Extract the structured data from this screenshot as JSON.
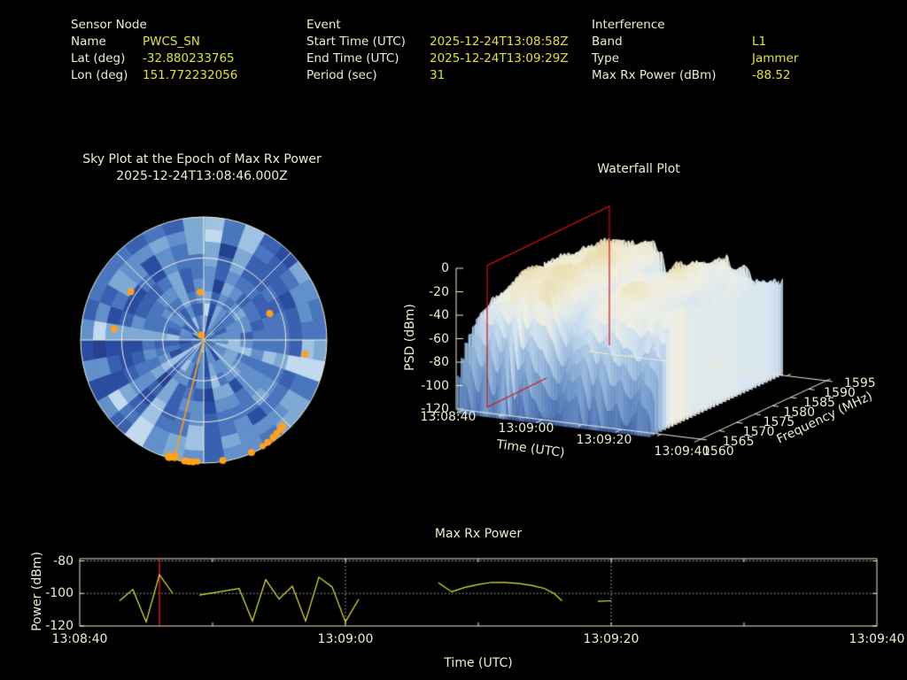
{
  "colors": {
    "background": "#000000",
    "text": "#f0ecd2",
    "value_text": "#e2e232",
    "series": "#e8e83c",
    "grid_dotted": "#b8b8b8",
    "frame": "#f0ecd2",
    "marker_red": "#dd1111",
    "satellite_orange": "#ffa01e"
  },
  "header": {
    "sensor": {
      "title": "Sensor Node",
      "rows": [
        {
          "label": "Name",
          "value": "PWCS_SN"
        },
        {
          "label": "Lat (deg)",
          "value": "-32.880233765"
        },
        {
          "label": "Lon (deg)",
          "value": "151.772232056"
        }
      ]
    },
    "event": {
      "title": "Event",
      "rows": [
        {
          "label": "Start Time (UTC)",
          "value": "2025-12-24T13:08:58Z"
        },
        {
          "label": "End Time (UTC)",
          "value": "2025-12-24T13:09:29Z"
        },
        {
          "label": "Period (sec)",
          "value": "31"
        }
      ]
    },
    "interference": {
      "title": "Interference",
      "rows": [
        {
          "label": "Band",
          "value": "L1"
        },
        {
          "label": "Type",
          "value": "Jammer"
        },
        {
          "label": "Max Rx Power (dBm)",
          "value": "-88.52"
        }
      ]
    }
  },
  "chart_data": [
    {
      "type": "heatmap",
      "id": "sky_plot",
      "title": "Sky Plot at the Epoch of Max Rx Power",
      "subtitle": "2025-12-24T13:08:46.000Z",
      "projection": "polar-azimuth-elevation",
      "elevation_rings_deg": [
        0,
        30,
        60
      ],
      "azimuth_spoke_step_deg": 45,
      "palette_blues": [
        "#24408e",
        "#2b4da1",
        "#3a60b0",
        "#4a76be",
        "#6190ca",
        "#7fa9d5",
        "#9fc2e2",
        "#c2daee"
      ],
      "seed": 12,
      "note": "azimuth/elevation bins shaded by received power (values not labeled on screen)",
      "jammer_bearing_line": {
        "az_deg": 194,
        "from_el_deg": 90,
        "to_el_deg": 2
      },
      "satellites_az_el": [
        {
          "az": 303.5,
          "el": 26,
          "size": 4
        },
        {
          "az": 356,
          "el": 55,
          "size": 4
        },
        {
          "az": 68,
          "el": 38,
          "size": 4
        },
        {
          "az": 277,
          "el": 24,
          "size": 4
        },
        {
          "az": 333,
          "el": 86,
          "size": 4
        },
        {
          "az": 98,
          "el": 15,
          "size": 4
        },
        {
          "az": 194,
          "el": 2,
          "size": 5
        },
        {
          "az": 196.5,
          "el": 1,
          "size": 5
        },
        {
          "az": 189,
          "el": 0.5,
          "size": 4
        },
        {
          "az": 187,
          "el": 0.5,
          "size": 4
        },
        {
          "az": 185,
          "el": 0.7,
          "size": 4
        },
        {
          "az": 183,
          "el": 1,
          "size": 3.5
        },
        {
          "az": 171,
          "el": 0.8,
          "size": 4
        },
        {
          "az": 157,
          "el": 0.6,
          "size": 4
        },
        {
          "az": 151,
          "el": 1.2,
          "size": 3.5
        },
        {
          "az": 148,
          "el": 1.8,
          "size": 4
        },
        {
          "az": 144.5,
          "el": 2.5,
          "size": 4
        },
        {
          "az": 142,
          "el": 3.2,
          "size": 4
        },
        {
          "az": 139.5,
          "el": 4,
          "size": 4
        },
        {
          "az": 137.5,
          "el": 4.6,
          "size": 4
        }
      ]
    },
    {
      "type": "surface",
      "id": "waterfall",
      "title": "Waterfall Plot",
      "xlabel": "Time (UTC)",
      "ylabel": "Frequency (MHz)",
      "zlabel": "PSD (dBm)",
      "x_ticks": [
        "13:08:40",
        "13:09:00",
        "13:09:20",
        "13:09:40"
      ],
      "y_ticks": [
        1560,
        1565,
        1570,
        1575,
        1580,
        1585,
        1590,
        1595
      ],
      "z_ticks": [
        0,
        -20,
        -40,
        -60,
        -80,
        -100,
        -120
      ],
      "zlim": [
        -120,
        0
      ],
      "time_range_sec": [
        0,
        60
      ],
      "surface_time_extent_sec": [
        0,
        49
      ],
      "freq_range_mhz": [
        1560,
        1595
      ],
      "epoch_marker_time": "2025-12-24T13:08:46.000Z",
      "epoch_marker_time_sec": 6,
      "marker_color": "#dd1111",
      "seed": 7,
      "surface_description": "GNSS L1-band PSD vs time: broad plateau near -25 dBm with cream ridge tops near -10 dBm, deep jagged notches to -120 dBm along the low-frequency edge; red plane marks epoch of max Rx power"
    },
    {
      "type": "line",
      "id": "max_rx_power",
      "title": "Max Rx Power",
      "xlabel": "Time (UTC)",
      "ylabel": "Power (dBm)",
      "x_ticks": [
        "13:08:40",
        "13:09:00",
        "13:09:20",
        "13:09:40"
      ],
      "x_tick_sec": [
        0,
        20,
        40,
        60
      ],
      "y_ticks": [
        -80,
        -100,
        -120
      ],
      "ylim": [
        -120,
        -80
      ],
      "x_range_sec": [
        0,
        60
      ],
      "marker_time_sec": 6,
      "marker_color": "#dd1111",
      "series_t_dbm": [
        [
          3,
          -104.5
        ],
        [
          4,
          -97.5
        ],
        [
          5,
          -117.5
        ],
        [
          6,
          -88.52
        ],
        [
          7,
          -100
        ],
        null,
        [
          9,
          -101
        ],
        [
          12,
          -97
        ],
        [
          13,
          -117
        ],
        [
          14,
          -91.5
        ],
        [
          15,
          -103.5
        ],
        [
          16,
          -95.5
        ],
        [
          17,
          -117
        ],
        [
          18,
          -90
        ],
        [
          19,
          -96
        ],
        [
          20,
          -117.5
        ],
        [
          21,
          -103.5
        ],
        null,
        [
          27,
          -93.5
        ],
        [
          28,
          -99
        ],
        [
          29,
          -96.3
        ],
        [
          30,
          -94.5
        ],
        [
          31,
          -93.2
        ],
        [
          32,
          -93.3
        ],
        [
          33,
          -93.8
        ],
        [
          34,
          -95
        ],
        [
          35,
          -97
        ],
        [
          35.7,
          -100
        ],
        [
          36.3,
          -104.5
        ],
        null,
        [
          39,
          -104.8
        ],
        [
          40,
          -104.5
        ]
      ]
    }
  ]
}
